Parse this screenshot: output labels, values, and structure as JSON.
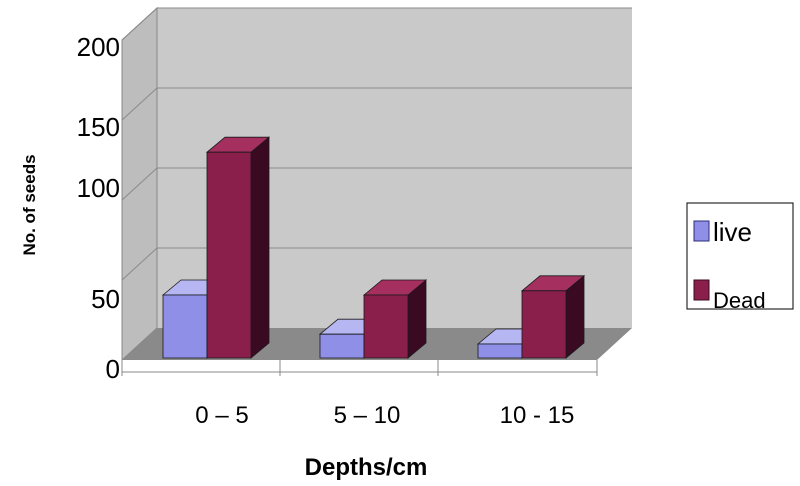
{
  "chart_data": {
    "type": "bar",
    "xlabel": "Depths/cm",
    "ylabel": "No. of seeds",
    "categories": [
      "0 – 5",
      "5 – 10",
      "10 - 15"
    ],
    "series": [
      {
        "name": "live",
        "values": [
          45,
          17,
          10
        ]
      },
      {
        "name": "Dead",
        "values": [
          147,
          45,
          48
        ]
      }
    ],
    "ylim": [
      0,
      200
    ],
    "yticks": [
      "0",
      "50",
      "100",
      "150",
      "200"
    ],
    "grid": true,
    "legend_position": "right",
    "colors": {
      "live_front": "#8f8fe8",
      "live_side": "#2e2e7a",
      "live_top": "#b6b6f2",
      "dead_front": "#8b1f4c",
      "dead_side": "#3a0a22",
      "dead_top": "#a53060",
      "wall_back": "#c9c9c9",
      "wall_left": "#bdbdbd",
      "floor": "#8a8a8a"
    }
  }
}
